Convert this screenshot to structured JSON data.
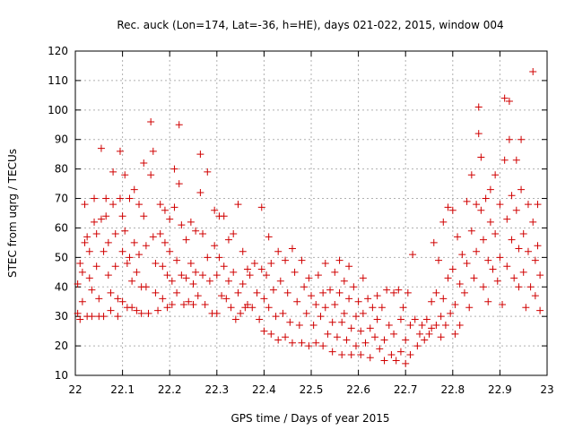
{
  "chart_data": {
    "type": "scatter",
    "title": "Rec. auck (Lon=174, Lat=-36, h=HE), days 021-022, 2015, window 004",
    "xlabel": "GPS time / Days of year 2015",
    "ylabel": "STEC from uqrg / TECUs",
    "xlim": [
      22,
      23
    ],
    "ylim": [
      10,
      120
    ],
    "x_ticks": [
      "22",
      "22.1",
      "22.2",
      "22.3",
      "22.4",
      "22.5",
      "22.6",
      "22.7",
      "22.8",
      "22.9",
      "23"
    ],
    "y_ticks": [
      "10",
      "20",
      "30",
      "40",
      "50",
      "60",
      "70",
      "80",
      "90",
      "100",
      "110",
      "120"
    ],
    "grid": true,
    "marker": "+",
    "color": "#d00000",
    "series": [
      {
        "name": "",
        "points": [
          [
            22.005,
            41
          ],
          [
            22.005,
            31
          ],
          [
            22.01,
            48
          ],
          [
            22.01,
            29
          ],
          [
            22.015,
            45
          ],
          [
            22.015,
            35
          ],
          [
            22.02,
            55
          ],
          [
            22.02,
            68
          ],
          [
            22.025,
            57
          ],
          [
            22.025,
            30
          ],
          [
            22.03,
            52
          ],
          [
            22.03,
            43
          ],
          [
            22.035,
            39
          ],
          [
            22.035,
            30
          ],
          [
            22.04,
            62
          ],
          [
            22.04,
            70
          ],
          [
            22.045,
            58
          ],
          [
            22.045,
            47
          ],
          [
            22.05,
            36
          ],
          [
            22.05,
            30
          ],
          [
            22.055,
            87
          ],
          [
            22.055,
            63
          ],
          [
            22.06,
            52
          ],
          [
            22.06,
            30
          ],
          [
            22.065,
            70
          ],
          [
            22.065,
            64
          ],
          [
            22.07,
            55
          ],
          [
            22.07,
            44
          ],
          [
            22.075,
            38
          ],
          [
            22.075,
            32
          ],
          [
            22.08,
            79
          ],
          [
            22.08,
            68
          ],
          [
            22.085,
            58
          ],
          [
            22.085,
            47
          ],
          [
            22.09,
            36
          ],
          [
            22.09,
            30
          ],
          [
            22.095,
            86
          ],
          [
            22.095,
            70
          ],
          [
            22.1,
            64
          ],
          [
            22.1,
            52
          ],
          [
            22.1,
            35
          ],
          [
            22.105,
            78
          ],
          [
            22.105,
            59
          ],
          [
            22.11,
            48
          ],
          [
            22.11,
            33
          ],
          [
            22.115,
            70
          ],
          [
            22.115,
            50
          ],
          [
            22.12,
            42
          ],
          [
            22.12,
            33
          ],
          [
            22.125,
            73
          ],
          [
            22.125,
            55
          ],
          [
            22.13,
            45
          ],
          [
            22.13,
            32
          ],
          [
            22.135,
            68
          ],
          [
            22.135,
            51
          ],
          [
            22.14,
            40
          ],
          [
            22.14,
            31
          ],
          [
            22.145,
            82
          ],
          [
            22.145,
            64
          ],
          [
            22.15,
            54
          ],
          [
            22.15,
            40
          ],
          [
            22.155,
            31
          ],
          [
            22.16,
            96
          ],
          [
            22.16,
            78
          ],
          [
            22.165,
            86
          ],
          [
            22.165,
            57
          ],
          [
            22.17,
            48
          ],
          [
            22.17,
            38
          ],
          [
            22.175,
            32
          ],
          [
            22.18,
            68
          ],
          [
            22.18,
            58
          ],
          [
            22.185,
            47
          ],
          [
            22.185,
            36
          ],
          [
            22.19,
            66
          ],
          [
            22.19,
            55
          ],
          [
            22.195,
            44
          ],
          [
            22.195,
            33
          ],
          [
            22.2,
            63
          ],
          [
            22.2,
            52
          ],
          [
            22.205,
            42
          ],
          [
            22.205,
            34
          ],
          [
            22.21,
            80
          ],
          [
            22.21,
            67
          ],
          [
            22.215,
            49
          ],
          [
            22.215,
            38
          ],
          [
            22.22,
            95
          ],
          [
            22.22,
            75
          ],
          [
            22.225,
            61
          ],
          [
            22.225,
            44
          ],
          [
            22.23,
            34
          ],
          [
            22.235,
            56
          ],
          [
            22.235,
            43
          ],
          [
            22.24,
            35
          ],
          [
            22.245,
            62
          ],
          [
            22.245,
            48
          ],
          [
            22.25,
            41
          ],
          [
            22.25,
            34
          ],
          [
            22.255,
            59
          ],
          [
            22.255,
            45
          ],
          [
            22.26,
            37
          ],
          [
            22.265,
            85
          ],
          [
            22.265,
            72
          ],
          [
            22.27,
            58
          ],
          [
            22.27,
            44
          ],
          [
            22.275,
            34
          ],
          [
            22.28,
            79
          ],
          [
            22.28,
            50
          ],
          [
            22.285,
            42
          ],
          [
            22.29,
            31
          ],
          [
            22.295,
            66
          ],
          [
            22.295,
            54
          ],
          [
            22.3,
            44
          ],
          [
            22.3,
            31
          ],
          [
            22.305,
            64
          ],
          [
            22.305,
            50
          ],
          [
            22.31,
            37
          ],
          [
            22.315,
            64
          ],
          [
            22.315,
            47
          ],
          [
            22.32,
            36
          ],
          [
            22.325,
            56
          ],
          [
            22.325,
            42
          ],
          [
            22.33,
            33
          ],
          [
            22.335,
            58
          ],
          [
            22.335,
            45
          ],
          [
            22.34,
            29
          ],
          [
            22.345,
            68
          ],
          [
            22.345,
            38
          ],
          [
            22.35,
            31
          ],
          [
            22.355,
            52
          ],
          [
            22.355,
            41
          ],
          [
            22.36,
            33
          ],
          [
            22.365,
            46
          ],
          [
            22.365,
            34
          ],
          [
            22.37,
            44
          ],
          [
            22.375,
            33
          ],
          [
            22.38,
            48
          ],
          [
            22.385,
            38
          ],
          [
            22.39,
            29
          ],
          [
            22.395,
            67
          ],
          [
            22.395,
            46
          ],
          [
            22.4,
            36
          ],
          [
            22.4,
            25
          ],
          [
            22.405,
            44
          ],
          [
            22.41,
            57
          ],
          [
            22.41,
            33
          ],
          [
            22.415,
            48
          ],
          [
            22.415,
            24
          ],
          [
            22.42,
            39
          ],
          [
            22.425,
            30
          ],
          [
            22.43,
            52
          ],
          [
            22.43,
            22
          ],
          [
            22.435,
            42
          ],
          [
            22.44,
            31
          ],
          [
            22.445,
            49
          ],
          [
            22.445,
            23
          ],
          [
            22.45,
            38
          ],
          [
            22.455,
            28
          ],
          [
            22.46,
            53
          ],
          [
            22.46,
            21
          ],
          [
            22.465,
            45
          ],
          [
            22.47,
            35
          ],
          [
            22.475,
            27
          ],
          [
            22.48,
            49
          ],
          [
            22.48,
            21
          ],
          [
            22.485,
            40
          ],
          [
            22.49,
            31
          ],
          [
            22.495,
            43
          ],
          [
            22.495,
            20
          ],
          [
            22.5,
            37
          ],
          [
            22.505,
            27
          ],
          [
            22.51,
            34
          ],
          [
            22.51,
            21
          ],
          [
            22.515,
            44
          ],
          [
            22.52,
            30
          ],
          [
            22.525,
            38
          ],
          [
            22.525,
            20
          ],
          [
            22.53,
            48
          ],
          [
            22.53,
            33
          ],
          [
            22.535,
            24
          ],
          [
            22.54,
            39
          ],
          [
            22.545,
            28
          ],
          [
            22.545,
            18
          ],
          [
            22.55,
            45
          ],
          [
            22.55,
            34
          ],
          [
            22.555,
            23
          ],
          [
            22.56,
            49
          ],
          [
            22.56,
            38
          ],
          [
            22.565,
            28
          ],
          [
            22.565,
            17
          ],
          [
            22.57,
            42
          ],
          [
            22.57,
            31
          ],
          [
            22.575,
            22
          ],
          [
            22.58,
            47
          ],
          [
            22.58,
            36
          ],
          [
            22.585,
            26
          ],
          [
            22.585,
            17
          ],
          [
            22.59,
            40
          ],
          [
            22.595,
            30
          ],
          [
            22.595,
            20
          ],
          [
            22.6,
            35
          ],
          [
            22.605,
            25
          ],
          [
            22.605,
            17
          ],
          [
            22.61,
            43
          ],
          [
            22.61,
            31
          ],
          [
            22.615,
            21
          ],
          [
            22.62,
            36
          ],
          [
            22.625,
            26
          ],
          [
            22.625,
            16
          ],
          [
            22.63,
            33
          ],
          [
            22.635,
            23
          ],
          [
            22.64,
            37
          ],
          [
            22.64,
            29
          ],
          [
            22.645,
            19
          ],
          [
            22.65,
            33
          ],
          [
            22.655,
            22
          ],
          [
            22.655,
            15
          ],
          [
            22.66,
            39
          ],
          [
            22.665,
            27
          ],
          [
            22.67,
            17
          ],
          [
            22.675,
            38
          ],
          [
            22.675,
            24
          ],
          [
            22.68,
            15
          ],
          [
            22.685,
            39
          ],
          [
            22.69,
            29
          ],
          [
            22.69,
            18
          ],
          [
            22.695,
            33
          ],
          [
            22.7,
            22
          ],
          [
            22.7,
            14
          ],
          [
            22.705,
            38
          ],
          [
            22.71,
            27
          ],
          [
            22.71,
            17
          ],
          [
            22.715,
            51
          ],
          [
            22.72,
            29
          ],
          [
            22.725,
            20
          ],
          [
            22.73,
            24
          ],
          [
            22.735,
            27
          ],
          [
            22.74,
            22
          ],
          [
            22.745,
            29
          ],
          [
            22.75,
            24
          ],
          [
            22.755,
            35
          ],
          [
            22.755,
            26
          ],
          [
            22.76,
            55
          ],
          [
            22.765,
            38
          ],
          [
            22.765,
            27
          ],
          [
            22.77,
            49
          ],
          [
            22.775,
            30
          ],
          [
            22.775,
            23
          ],
          [
            22.78,
            62
          ],
          [
            22.78,
            36
          ],
          [
            22.785,
            27
          ],
          [
            22.79,
            67
          ],
          [
            22.79,
            43
          ],
          [
            22.795,
            31
          ],
          [
            22.8,
            66
          ],
          [
            22.8,
            46
          ],
          [
            22.805,
            34
          ],
          [
            22.805,
            24
          ],
          [
            22.81,
            57
          ],
          [
            22.815,
            41
          ],
          [
            22.815,
            27
          ],
          [
            22.82,
            51
          ],
          [
            22.825,
            38
          ],
          [
            22.83,
            69
          ],
          [
            22.83,
            48
          ],
          [
            22.835,
            33
          ],
          [
            22.84,
            78
          ],
          [
            22.84,
            59
          ],
          [
            22.845,
            43
          ],
          [
            22.85,
            68
          ],
          [
            22.85,
            52
          ],
          [
            22.855,
            101
          ],
          [
            22.855,
            92
          ],
          [
            22.86,
            84
          ],
          [
            22.86,
            66
          ],
          [
            22.865,
            56
          ],
          [
            22.865,
            40
          ],
          [
            22.87,
            70
          ],
          [
            22.875,
            49
          ],
          [
            22.875,
            35
          ],
          [
            22.88,
            73
          ],
          [
            22.88,
            62
          ],
          [
            22.885,
            46
          ],
          [
            22.89,
            78
          ],
          [
            22.89,
            58
          ],
          [
            22.895,
            42
          ],
          [
            22.9,
            68
          ],
          [
            22.9,
            50
          ],
          [
            22.905,
            34
          ],
          [
            22.91,
            104
          ],
          [
            22.91,
            83
          ],
          [
            22.915,
            63
          ],
          [
            22.915,
            47
          ],
          [
            22.92,
            103
          ],
          [
            22.92,
            90
          ],
          [
            22.925,
            71
          ],
          [
            22.925,
            56
          ],
          [
            22.93,
            43
          ],
          [
            22.935,
            83
          ],
          [
            22.935,
            66
          ],
          [
            22.94,
            53
          ],
          [
            22.94,
            40
          ],
          [
            22.945,
            90
          ],
          [
            22.945,
            73
          ],
          [
            22.95,
            58
          ],
          [
            22.95,
            45
          ],
          [
            22.955,
            33
          ],
          [
            22.96,
            68
          ],
          [
            22.96,
            52
          ],
          [
            22.965,
            40
          ],
          [
            22.97,
            113
          ],
          [
            22.97,
            62
          ],
          [
            22.975,
            49
          ],
          [
            22.975,
            37
          ],
          [
            22.98,
            68
          ],
          [
            22.98,
            54
          ],
          [
            22.985,
            44
          ],
          [
            22.985,
            32
          ]
        ]
      }
    ]
  }
}
